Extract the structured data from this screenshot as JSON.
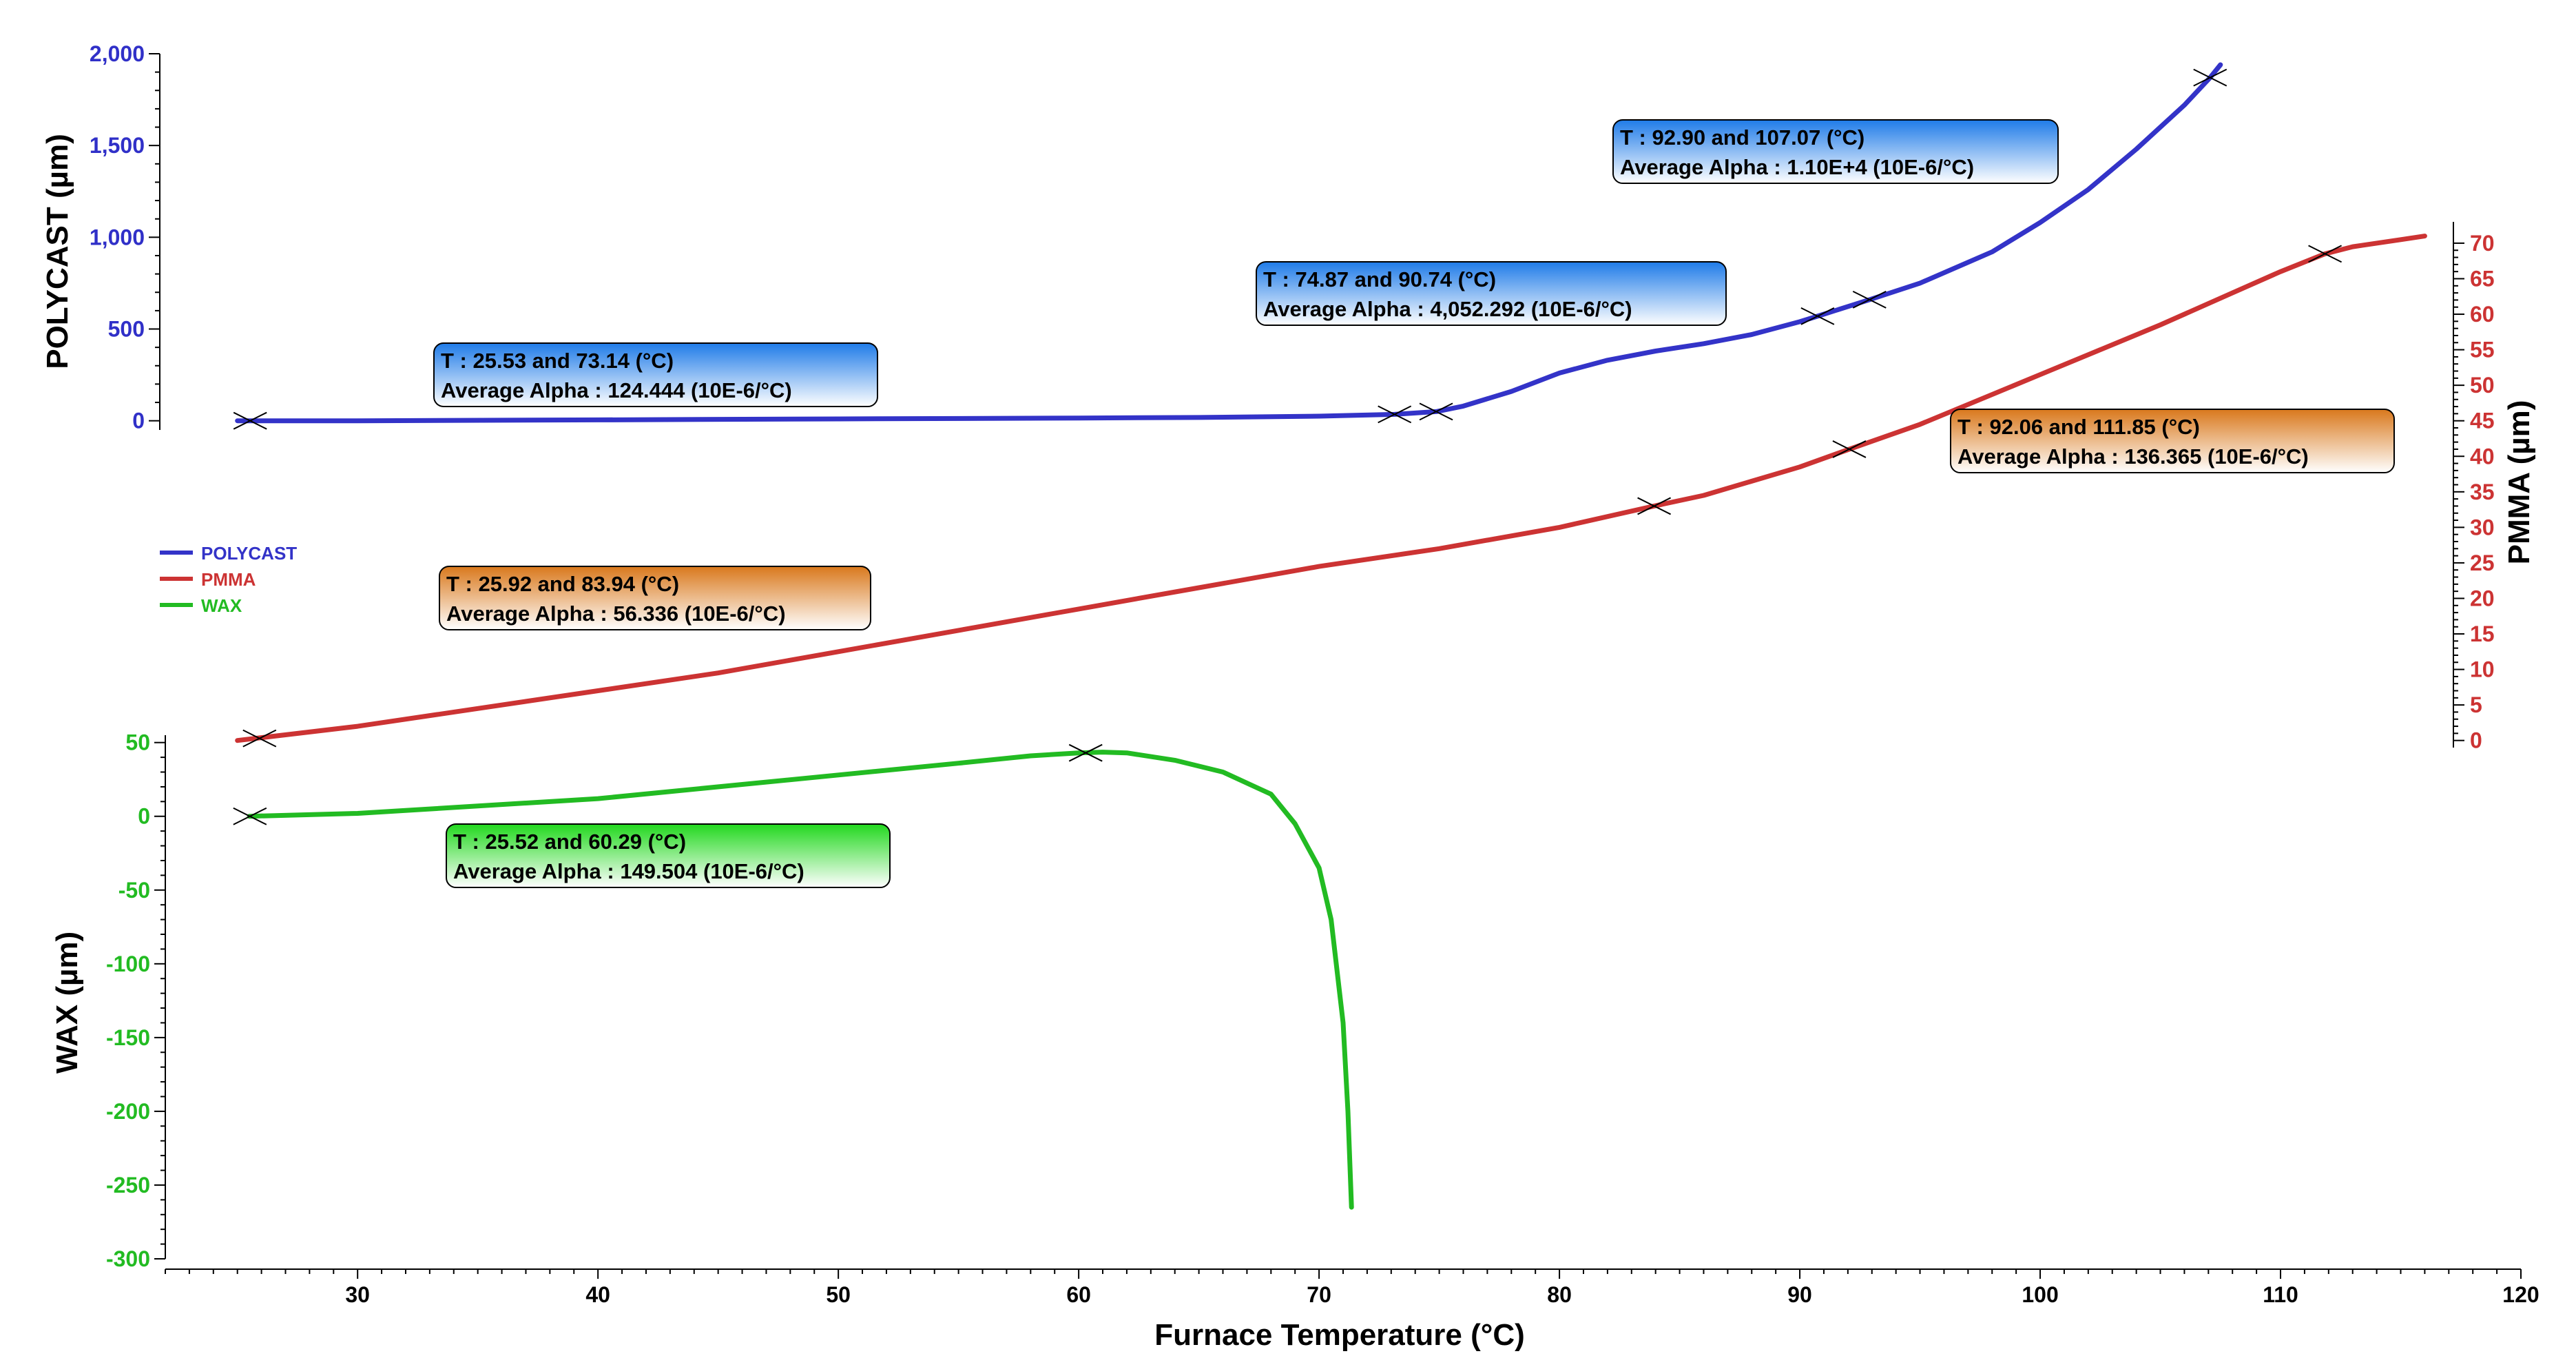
{
  "chart_data": {
    "type": "line",
    "x_axis": {
      "label": "Furnace Temperature (°C)",
      "range": [
        22,
        120
      ],
      "ticks": [
        30,
        40,
        50,
        60,
        70,
        80,
        90,
        100,
        110,
        120
      ]
    },
    "axes": {
      "polycast": {
        "label": "POLYCAST (µm)",
        "side": "left-top",
        "range": [
          -50,
          2000
        ],
        "ticks": [
          0,
          500,
          1000,
          1500,
          2000
        ],
        "tick_labels": [
          "0",
          "500",
          "1,000",
          "1,500",
          "2,000"
        ]
      },
      "wax": {
        "label": "WAX  (µm)",
        "side": "left-bottom",
        "range": [
          -300,
          55
        ],
        "ticks": [
          -300,
          -250,
          -200,
          -150,
          -100,
          -50,
          0,
          50
        ],
        "tick_labels": [
          "-300",
          "-250",
          "-200",
          "-150",
          "-100",
          "-50",
          "0",
          "50"
        ]
      },
      "pmma": {
        "label": "PMMA (µm)",
        "side": "right",
        "range": [
          -1,
          73
        ],
        "ticks": [
          0,
          5,
          10,
          15,
          20,
          25,
          30,
          35,
          40,
          45,
          50,
          55,
          60,
          65,
          70
        ],
        "tick_labels": [
          "0",
          "5",
          "10",
          "15",
          "20",
          "25",
          "30",
          "35",
          "40",
          "45",
          "50",
          "55",
          "60",
          "65",
          "70"
        ]
      }
    },
    "legend": {
      "placement": "left",
      "entries": [
        "POLYCAST",
        "PMMA",
        "WAX"
      ]
    },
    "series": [
      {
        "name": "POLYCAST",
        "axis": "polycast",
        "color": "#3333c8",
        "points": [
          [
            25,
            0
          ],
          [
            30,
            0
          ],
          [
            40,
            5
          ],
          [
            50,
            10
          ],
          [
            60,
            15
          ],
          [
            65,
            18
          ],
          [
            70,
            25
          ],
          [
            73.14,
            35
          ],
          [
            74.87,
            50
          ],
          [
            76,
            80
          ],
          [
            78,
            160
          ],
          [
            80,
            260
          ],
          [
            82,
            330
          ],
          [
            84,
            380
          ],
          [
            86,
            420
          ],
          [
            88,
            470
          ],
          [
            90,
            540
          ],
          [
            90.74,
            570
          ],
          [
            92.9,
            660
          ],
          [
            95,
            750
          ],
          [
            98,
            920
          ],
          [
            100,
            1080
          ],
          [
            102,
            1260
          ],
          [
            104,
            1480
          ],
          [
            106,
            1720
          ],
          [
            107.07,
            1870
          ],
          [
            107.5,
            1940
          ]
        ],
        "markers": [
          [
            25.53,
            0
          ],
          [
            73.14,
            35
          ],
          [
            74.87,
            50
          ],
          [
            90.74,
            570
          ],
          [
            92.9,
            660
          ],
          [
            107.07,
            1870
          ]
        ]
      },
      {
        "name": "PMMA",
        "axis": "pmma",
        "color": "#cc3333",
        "points": [
          [
            25,
            0
          ],
          [
            30,
            2
          ],
          [
            35,
            4.5
          ],
          [
            40,
            7
          ],
          [
            45,
            9.5
          ],
          [
            50,
            12.5
          ],
          [
            55,
            15.5
          ],
          [
            60,
            18.5
          ],
          [
            65,
            21.5
          ],
          [
            70,
            24.5
          ],
          [
            75,
            27
          ],
          [
            80,
            30
          ],
          [
            83.94,
            33
          ],
          [
            86,
            34.5
          ],
          [
            90,
            38.5
          ],
          [
            92.06,
            41
          ],
          [
            95,
            44.5
          ],
          [
            100,
            51.5
          ],
          [
            105,
            58.5
          ],
          [
            108,
            63
          ],
          [
            110,
            66
          ],
          [
            111.85,
            68.5
          ],
          [
            113,
            69.5
          ],
          [
            115,
            70.5
          ],
          [
            116,
            71
          ]
        ],
        "markers": [
          [
            25.92,
            0.3
          ],
          [
            83.94,
            33
          ],
          [
            92.06,
            41
          ],
          [
            111.85,
            68.5
          ]
        ]
      },
      {
        "name": "WAX",
        "axis": "wax",
        "color": "#22bb22",
        "points": [
          [
            25.5,
            0
          ],
          [
            30,
            2
          ],
          [
            40,
            12
          ],
          [
            50,
            28
          ],
          [
            55,
            36
          ],
          [
            58,
            41
          ],
          [
            60,
            43
          ],
          [
            61,
            43.5
          ],
          [
            62,
            43
          ],
          [
            64,
            38
          ],
          [
            66,
            30
          ],
          [
            68,
            15
          ],
          [
            69,
            -5
          ],
          [
            70,
            -35
          ],
          [
            70.5,
            -70
          ],
          [
            71,
            -140
          ],
          [
            71.2,
            -200
          ],
          [
            71.35,
            -265
          ]
        ],
        "markers": [
          [
            25.52,
            0
          ],
          [
            60.29,
            43
          ]
        ]
      }
    ],
    "annotations": [
      {
        "line1": "T : 25.53 and 73.14 (°C)",
        "line2": "Average Alpha :  124.444 (10E-6/°C)",
        "style": "blue"
      },
      {
        "line1": "T : 74.87 and 90.74 (°C)",
        "line2": "Average Alpha :  4,052.292 (10E-6/°C)",
        "style": "blue"
      },
      {
        "line1": "T : 92.90 and 107.07 (°C)",
        "line2": "Average Alpha :  1.10E+4 (10E-6/°C)",
        "style": "blue"
      },
      {
        "line1": "T : 25.92 and 83.94 (°C)",
        "line2": "Average Alpha :  56.336 (10E-6/°C)",
        "style": "orange"
      },
      {
        "line1": "T : 92.06 and 111.85 (°C)",
        "line2": "Average Alpha :  136.365 (10E-6/°C)",
        "style": "orange"
      },
      {
        "line1": "T : 25.52 and 60.29 (°C)",
        "line2": "Average Alpha :  149.504 (10E-6/°C)",
        "style": "green"
      }
    ]
  }
}
